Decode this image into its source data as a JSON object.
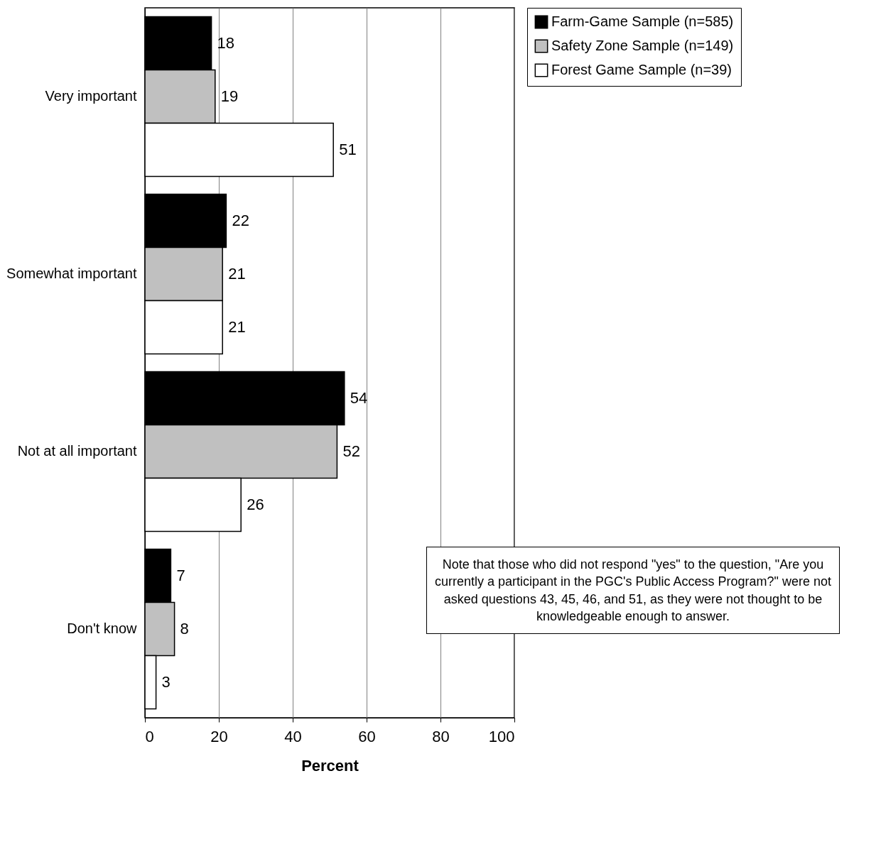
{
  "chart_data": {
    "type": "bar",
    "orientation": "horizontal",
    "xlabel": "Percent",
    "categories": [
      "Very important",
      "Somewhat important",
      "Not at all important",
      "Don't know"
    ],
    "series": [
      {
        "name": "Farm-Game Sample (n=585)",
        "color": "#000000",
        "values": [
          18,
          22,
          54,
          7
        ]
      },
      {
        "name": "Safety Zone Sample (n=149)",
        "color": "#c0c0c0",
        "values": [
          19,
          21,
          52,
          8
        ]
      },
      {
        "name": "Forest Game Sample (n=39)",
        "color": "#ffffff",
        "values": [
          51,
          21,
          26,
          3
        ]
      }
    ],
    "xlim": [
      0,
      100
    ],
    "xticks": [
      0,
      20,
      40,
      60,
      80,
      100
    ],
    "grid": "x",
    "legend": "right",
    "data_labels": true,
    "annotations": [
      "Note that those who did not respond \"yes\" to the question, \"Are you currently a participant in the PGC's Public Access Program?\" were not asked questions 43, 45, 46, and 51, as they were not thought to be knowledgeable enough to answer."
    ]
  }
}
